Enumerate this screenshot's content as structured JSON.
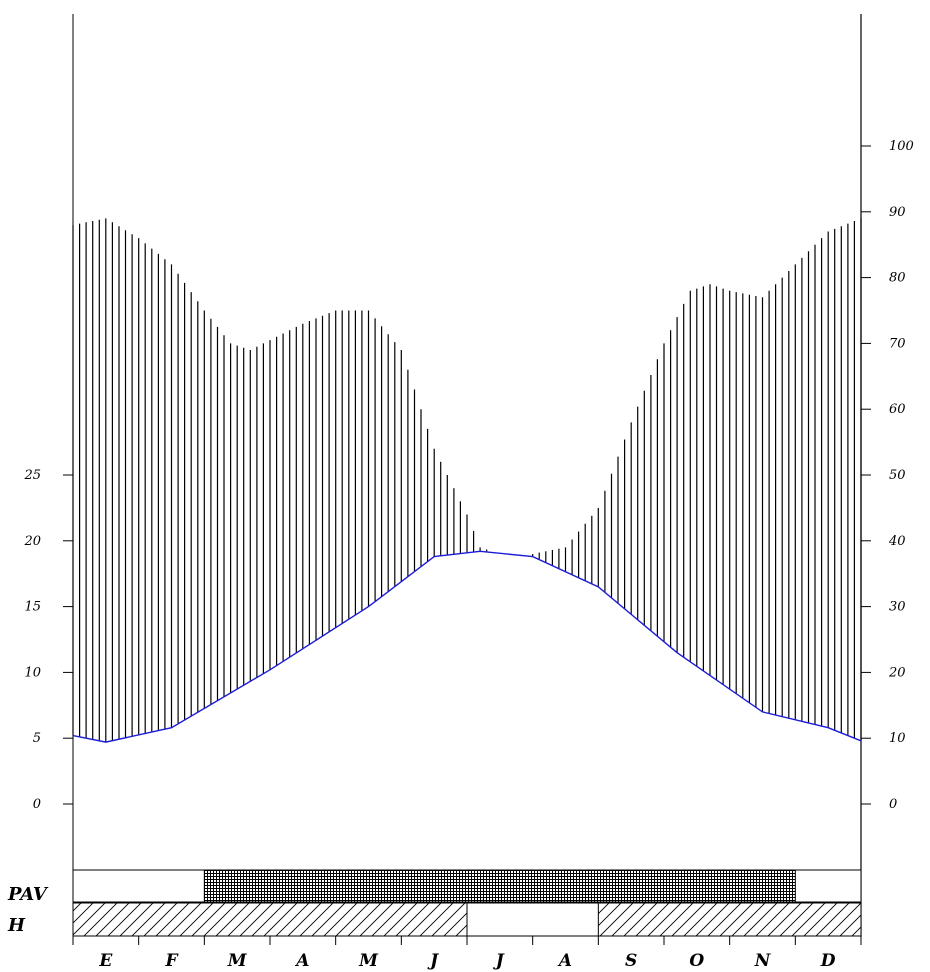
{
  "chart_data": {
    "type": "line",
    "title": "",
    "left_axis": {
      "ticks": [
        0,
        5,
        10,
        15,
        20,
        25
      ],
      "range": [
        0,
        50
      ]
    },
    "right_axis": {
      "ticks": [
        0,
        10,
        20,
        30,
        40,
        50,
        60,
        70,
        80,
        90,
        100
      ],
      "range": [
        0,
        100
      ]
    },
    "months": [
      "E",
      "F",
      "M",
      "A",
      "M",
      "J",
      "J",
      "A",
      "S",
      "O",
      "N",
      "D"
    ],
    "series": [
      {
        "axis": "left",
        "color": "#1c1cd6",
        "x": [
          0,
          0.5,
          1.5,
          3.0,
          4.5,
          5.5,
          6.2,
          7.0,
          8.0,
          9.2,
          10.5,
          11.5,
          12
        ],
        "values": [
          5.2,
          4.7,
          5.8,
          10.2,
          15.0,
          18.8,
          19.2,
          18.8,
          16.5,
          11.5,
          7.0,
          5.8,
          4.8
        ]
      },
      {
        "axis": "right",
        "color": "#000000",
        "x": [
          0,
          0.5,
          1.0,
          1.5,
          2.0,
          2.4,
          2.7,
          3.5,
          4.0,
          4.5,
          5.0,
          5.5,
          6.0,
          6.2,
          6.5,
          7.0,
          7.5,
          8.0,
          8.5,
          9.0,
          9.4,
          9.7,
          10.0,
          10.5,
          11.0,
          11.5,
          12
        ],
        "values": [
          88,
          89,
          86,
          82,
          75,
          70,
          69,
          73,
          75,
          75,
          69,
          54,
          44,
          39,
          38,
          38,
          39,
          45,
          58,
          70,
          78,
          79,
          78,
          77,
          82,
          87,
          89
        ]
      }
    ],
    "bands": [
      {
        "label": "PAV",
        "segments": [
          {
            "start": 2,
            "end": 11,
            "fill": "crosshatch"
          }
        ]
      },
      {
        "label": "H",
        "segments": [
          {
            "start": 0,
            "end": 6,
            "fill": "hatch"
          },
          {
            "start": 8,
            "end": 12,
            "fill": "hatch"
          }
        ]
      }
    ],
    "colors": {
      "temperature": "#1c1cd6",
      "precipitation": "#000000"
    }
  }
}
